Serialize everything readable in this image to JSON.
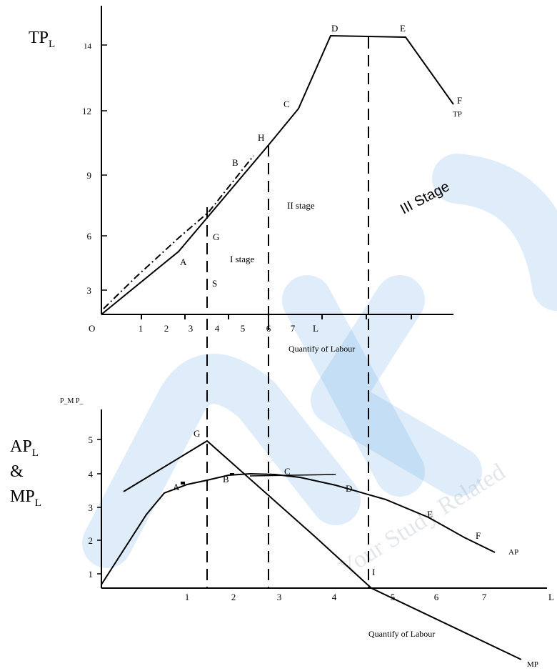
{
  "watermark": {
    "text": "Your Study Related",
    "brand_color": "#3a8fe0"
  },
  "top_chart": {
    "y_title_main": "TP",
    "y_title_sub": "L",
    "origin_label": "O",
    "x_title": "Quantify of Labour",
    "x_end_label": "L",
    "y_ticks": [
      "3",
      "6",
      "9",
      "12",
      "14"
    ],
    "x_ticks": [
      "1",
      "2",
      "3",
      "4",
      "5",
      "6",
      "7"
    ],
    "point_labels": {
      "A": "A",
      "B": "B",
      "C": "C",
      "D": "D",
      "E": "E",
      "F": "F",
      "G": "G",
      "H": "H",
      "S": "S",
      "TP": "TP"
    },
    "stage_labels": {
      "stage1": "I stage",
      "stage2": "II stage",
      "stage3": "III Stage"
    }
  },
  "bottom_chart": {
    "y_axis_caption": "P_M P_",
    "left_title_ap": "AP",
    "left_title_amp": "&",
    "left_title_mp": "MP",
    "left_title_sub": "L",
    "x_title": "Quantify of Labour",
    "x_end_label": "L",
    "y_ticks": [
      "1",
      "2",
      "3",
      "4",
      "5"
    ],
    "x_ticks": [
      "1",
      "2",
      "3",
      "4",
      "5",
      "6",
      "7"
    ],
    "point_labels": {
      "G": "G",
      "A": "A",
      "B": "B",
      "C": "C",
      "D": "D",
      "E": "E",
      "F": "F",
      "I": "I",
      "AP": "AP",
      "MP": "MP"
    }
  },
  "chart_data": [
    {
      "type": "line",
      "title": "",
      "xlabel": "Quantify of Labour",
      "ylabel": "TP",
      "x_ticks": [
        1,
        2,
        3,
        4,
        5,
        6,
        7
      ],
      "y_ticks": [
        3,
        6,
        9,
        12,
        14
      ],
      "series": [
        {
          "name": "TP",
          "points": [
            [
              0,
              2.0
            ],
            [
              3.0,
              5.2
            ],
            [
              6.0,
              10.4
            ],
            [
              7.2,
              12.0
            ],
            [
              8.2,
              14.6
            ],
            [
              10.7,
              14.5
            ],
            [
              12.2,
              12.1
            ]
          ]
        }
      ],
      "stage_dividers_x": [
        4.0,
        6.0,
        9.5
      ],
      "stages": [
        "I stage",
        "II stage",
        "III Stage"
      ]
    },
    {
      "type": "line",
      "title": "",
      "xlabel": "Quantify of Labour",
      "ylabel": "AP & MP",
      "x_ticks": [
        1,
        2,
        3,
        4,
        5,
        6,
        7
      ],
      "y_ticks": [
        1,
        2,
        3,
        4,
        5
      ],
      "series": [
        {
          "name": "AP",
          "points": [
            [
              0,
              0.6
            ],
            [
              0.45,
              1.7
            ],
            [
              0.95,
              3.4
            ],
            [
              1.5,
              3.65
            ],
            [
              2.0,
              3.8
            ],
            [
              2.6,
              3.85
            ],
            [
              3.1,
              3.7
            ],
            [
              4.1,
              3.5
            ],
            [
              5.2,
              3.0
            ],
            [
              6.1,
              2.5
            ],
            [
              6.9,
              1.9
            ],
            [
              7.25,
              1.7
            ]
          ]
        },
        {
          "name": "MP",
          "points": [
            [
              0.45,
              2.85
            ],
            [
              1.45,
              4.9
            ],
            [
              3.1,
              2.3
            ],
            [
              4.5,
              0.4
            ],
            [
              7.8,
              -2.4
            ]
          ]
        },
        {
          "name": "",
          "points": [
            [
              2.6,
              3.85
            ],
            [
              4.2,
              3.9
            ]
          ]
        }
      ],
      "verticals_x": [
        1.45,
        2.45,
        4.5
      ]
    }
  ]
}
